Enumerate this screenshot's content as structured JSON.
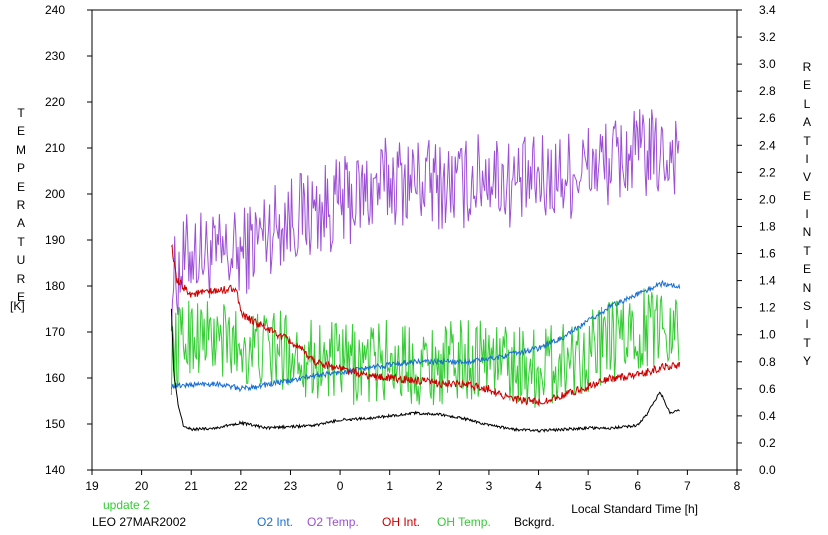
{
  "left_axis_label": "TEMPERATURE",
  "left_axis_unit": "[K]",
  "right_axis_label_1": "RELATIVE",
  "right_axis_label_2": "INTENSITY",
  "xlabel": "Local Standard Time [h]",
  "footer": {
    "update": "update 2",
    "station": "LEO 27MAR2002"
  },
  "legend": [
    {
      "label": "O2 Int.",
      "color": "#1a6fd0"
    },
    {
      "label": "O2 Temp.",
      "color": "#9c4fd6"
    },
    {
      "label": "OH Int.",
      "color": "#cc0000"
    },
    {
      "label": "OH Temp.",
      "color": "#33cc33"
    },
    {
      "label": "Bckgrd.",
      "color": "#000000"
    }
  ],
  "chart_data": {
    "type": "line",
    "xlabel": "Local Standard Time [h]",
    "ylabel_left": "TEMPERATURE [K]",
    "ylabel_right": "RELATIVE INTENSITY",
    "x_ticks": [
      "19",
      "20",
      "21",
      "22",
      "23",
      "0",
      "1",
      "2",
      "3",
      "4",
      "5",
      "6",
      "7",
      "8"
    ],
    "xlim": [
      19,
      32
    ],
    "ylim_left": [
      140,
      240
    ],
    "ylim_right": [
      0.0,
      3.4
    ],
    "y_ticks_left": [
      "140",
      "150",
      "160",
      "170",
      "180",
      "190",
      "200",
      "210",
      "220",
      "230",
      "240"
    ],
    "y_ticks_right": [
      "0.0",
      "0.2",
      "0.4",
      "0.6",
      "0.8",
      "1.0",
      "1.2",
      "1.4",
      "1.6",
      "1.8",
      "2.0",
      "2.2",
      "2.4",
      "2.6",
      "2.8",
      "3.0",
      "3.2",
      "3.4"
    ],
    "grid": false,
    "series": [
      {
        "name": "O2 Temp.",
        "axis": "left",
        "color": "#9c4fd6",
        "x": [
          20.6,
          21.0,
          21.5,
          22.0,
          22.5,
          23.0,
          23.5,
          24.0,
          24.5,
          25.0,
          25.5,
          26.0,
          26.5,
          27.0,
          27.5,
          28.0,
          28.5,
          29.0,
          29.5,
          30.0,
          30.5,
          30.85
        ],
        "y": [
          180,
          188,
          186,
          187,
          192,
          195,
          196,
          198,
          200,
          203,
          203,
          202,
          202,
          205,
          202,
          203,
          204,
          206,
          207,
          209,
          208,
          210
        ]
      },
      {
        "name": "OH Temp.",
        "axis": "left",
        "color": "#33cc33",
        "x": [
          20.6,
          21.0,
          21.5,
          22.0,
          22.5,
          23.0,
          23.5,
          24.0,
          24.5,
          25.0,
          25.5,
          26.0,
          26.5,
          27.0,
          27.5,
          28.0,
          28.5,
          29.0,
          29.5,
          30.0,
          30.5,
          30.85
        ],
        "y": [
          165,
          170,
          168,
          167,
          166,
          166,
          164,
          163,
          163,
          164,
          163,
          163,
          164,
          165,
          163,
          162,
          164,
          166,
          168,
          170,
          172,
          172
        ]
      },
      {
        "name": "O2 Int.",
        "axis": "right",
        "color": "#1a6fd0",
        "x": [
          20.6,
          21.0,
          21.5,
          22.0,
          22.5,
          23.0,
          23.5,
          24.0,
          24.5,
          25.0,
          25.5,
          26.0,
          26.5,
          27.0,
          27.5,
          28.0,
          28.5,
          29.0,
          29.5,
          30.0,
          30.5,
          30.85
        ],
        "y": [
          0.62,
          0.63,
          0.64,
          0.6,
          0.63,
          0.66,
          0.7,
          0.72,
          0.75,
          0.78,
          0.8,
          0.8,
          0.8,
          0.82,
          0.86,
          0.9,
          0.98,
          1.1,
          1.22,
          1.3,
          1.38,
          1.35
        ]
      },
      {
        "name": "OH Int.",
        "axis": "right",
        "color": "#cc0000",
        "x": [
          20.6,
          20.7,
          21.0,
          21.5,
          21.9,
          22.0,
          22.5,
          23.0,
          23.5,
          24.0,
          24.5,
          25.0,
          25.5,
          26.0,
          26.5,
          27.0,
          27.5,
          28.0,
          28.5,
          29.0,
          29.5,
          30.0,
          30.5,
          30.85
        ],
        "y": [
          1.68,
          1.4,
          1.3,
          1.32,
          1.35,
          1.15,
          1.05,
          0.95,
          0.8,
          0.75,
          0.7,
          0.68,
          0.66,
          0.64,
          0.63,
          0.6,
          0.52,
          0.5,
          0.55,
          0.62,
          0.68,
          0.7,
          0.76,
          0.78
        ]
      },
      {
        "name": "Bckgrd.",
        "axis": "right",
        "color": "#000000",
        "x": [
          20.6,
          20.65,
          20.75,
          20.85,
          21.0,
          21.5,
          22.0,
          22.5,
          23.0,
          23.5,
          24.0,
          24.5,
          25.0,
          25.5,
          26.0,
          26.5,
          27.0,
          27.5,
          28.0,
          28.5,
          29.0,
          29.5,
          30.0,
          30.2,
          30.45,
          30.65,
          30.85
        ],
        "y": [
          1.2,
          0.7,
          0.45,
          0.32,
          0.3,
          0.31,
          0.35,
          0.31,
          0.32,
          0.33,
          0.37,
          0.38,
          0.4,
          0.42,
          0.41,
          0.38,
          0.33,
          0.3,
          0.29,
          0.3,
          0.31,
          0.31,
          0.33,
          0.42,
          0.58,
          0.42,
          0.44
        ]
      }
    ]
  }
}
